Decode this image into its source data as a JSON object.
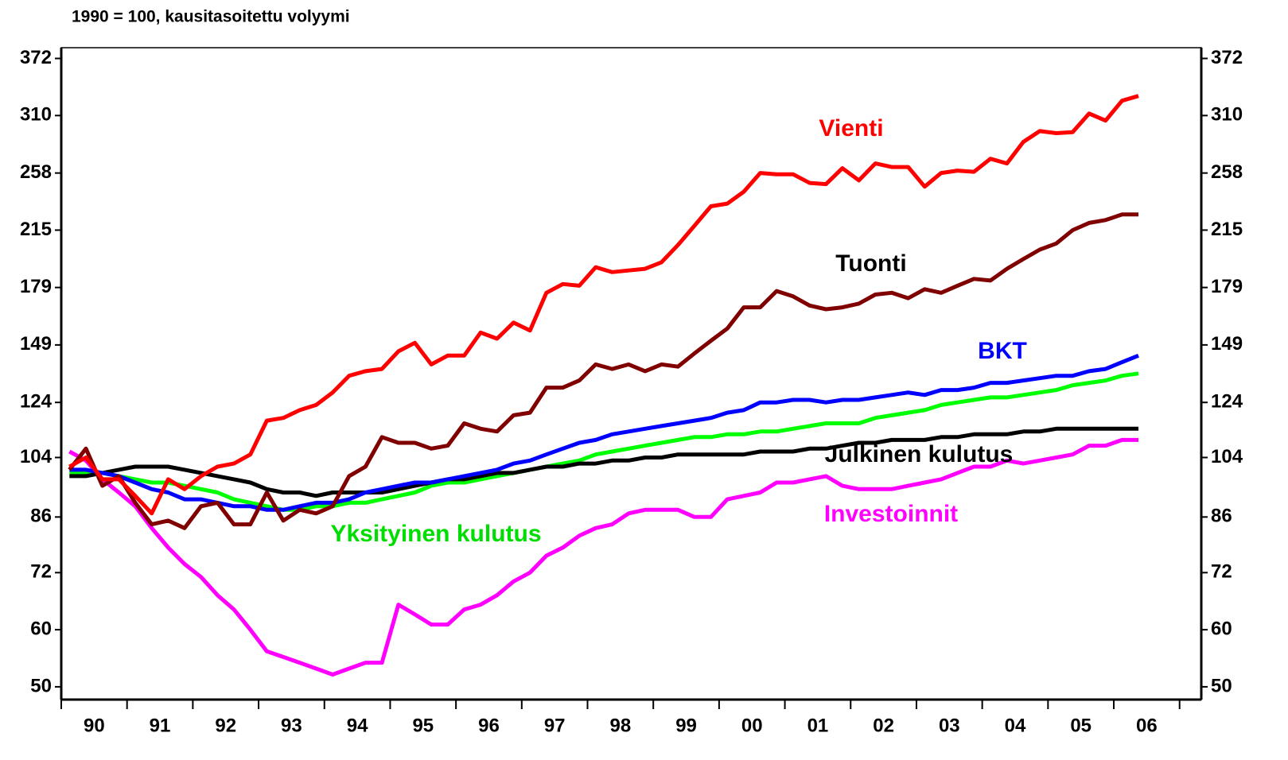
{
  "chart_data": {
    "type": "line",
    "subtitle": "1990 = 100, kausitasoitettu volyymi",
    "log_y": true,
    "x": [
      1990.125,
      1990.375,
      1990.625,
      1990.875,
      1991.125,
      1991.375,
      1991.625,
      1991.875,
      1992.125,
      1992.375,
      1992.625,
      1992.875,
      1993.125,
      1993.375,
      1993.625,
      1993.875,
      1994.125,
      1994.375,
      1994.625,
      1994.875,
      1995.125,
      1995.375,
      1995.625,
      1995.875,
      1996.125,
      1996.375,
      1996.625,
      1996.875,
      1997.125,
      1997.375,
      1997.625,
      1997.875,
      1998.125,
      1998.375,
      1998.625,
      1998.875,
      1999.125,
      1999.375,
      1999.625,
      1999.875,
      2000.125,
      2000.375,
      2000.625,
      2000.875,
      2001.125,
      2001.375,
      2001.625,
      2001.875,
      2002.125,
      2002.375,
      2002.625,
      2002.875,
      2003.125,
      2003.375,
      2003.625,
      2003.875,
      2004.125,
      2004.375,
      2004.625,
      2004.875,
      2005.125,
      2005.375,
      2005.625,
      2005.875,
      2006.125,
      2006.375
    ],
    "xlim": [
      1990,
      2007.33
    ],
    "xticks": [
      1990,
      1991,
      1992,
      1993,
      1994,
      1995,
      1996,
      1997,
      1998,
      1999,
      2000,
      2001,
      2002,
      2003,
      2004,
      2005,
      2006,
      2007
    ],
    "year_labels": [
      "90",
      "91",
      "92",
      "93",
      "94",
      "95",
      "96",
      "97",
      "98",
      "99",
      "00",
      "01",
      "02",
      "03",
      "04",
      "05",
      "06"
    ],
    "ylim": [
      48,
      385
    ],
    "yticks": [
      50,
      60,
      72,
      86,
      104,
      124,
      149,
      179,
      215,
      258,
      310,
      372
    ],
    "series": [
      {
        "name": "Vienti",
        "color": "#ff0000",
        "values": [
          101,
          104,
          97,
          97,
          92,
          87,
          97,
          94,
          98,
          101,
          102,
          105,
          117,
          118,
          121,
          123,
          128,
          135,
          137,
          138,
          146,
          150,
          140,
          144,
          144,
          155,
          152,
          160,
          156,
          176,
          181,
          180,
          191,
          188,
          189,
          190,
          194,
          205,
          218,
          232,
          234,
          243,
          258,
          257,
          257,
          250,
          249,
          262,
          252,
          266,
          263,
          263,
          247,
          258,
          260,
          259,
          270,
          266,
          285,
          295,
          293,
          294,
          312,
          305,
          325,
          330
        ]
      },
      {
        "name": "Tuonti",
        "color": "#800000",
        "values": [
          100,
          107,
          95,
          98,
          90,
          84,
          85,
          83,
          89,
          90,
          84,
          84,
          93,
          85,
          88,
          87,
          89,
          98,
          101,
          111,
          109,
          109,
          107,
          108,
          116,
          114,
          113,
          119,
          120,
          130,
          130,
          133,
          140,
          138,
          140,
          137,
          140,
          139,
          145,
          151,
          157,
          168,
          168,
          177,
          174,
          169,
          167,
          168,
          170,
          175,
          176,
          173,
          178,
          176,
          180,
          184,
          183,
          190,
          196,
          202,
          206,
          215,
          220,
          222,
          226,
          226
        ]
      },
      {
        "name": "BKT",
        "color": "#0000ff",
        "values": [
          100,
          100,
          99,
          98,
          96,
          94,
          93,
          91,
          91,
          90,
          89,
          89,
          88,
          88,
          89,
          90,
          90,
          91,
          93,
          94,
          95,
          96,
          96,
          97,
          98,
          99,
          100,
          102,
          103,
          105,
          107,
          109,
          110,
          112,
          113,
          114,
          115,
          116,
          117,
          118,
          120,
          121,
          124,
          124,
          125,
          125,
          124,
          125,
          125,
          126,
          127,
          128,
          127,
          129,
          129,
          130,
          132,
          132,
          133,
          134,
          135,
          135,
          137,
          138,
          141,
          144
        ]
      },
      {
        "name": "Yksityinen kulutus",
        "color": "#00ff00",
        "values": [
          99,
          99,
          99,
          98,
          97,
          96,
          96,
          95,
          94,
          93,
          91,
          90,
          89,
          88,
          88,
          89,
          89,
          90,
          90,
          91,
          92,
          93,
          95,
          96,
          96,
          97,
          98,
          99,
          100,
          101,
          102,
          103,
          105,
          106,
          107,
          108,
          109,
          110,
          111,
          111,
          112,
          112,
          113,
          113,
          114,
          115,
          116,
          116,
          116,
          118,
          119,
          120,
          121,
          123,
          124,
          125,
          126,
          126,
          127,
          128,
          129,
          131,
          132,
          133,
          135,
          136
        ]
      },
      {
        "name": "Julkinen kulutus",
        "color": "#000000",
        "values": [
          98,
          98,
          99,
          100,
          101,
          101,
          101,
          100,
          99,
          98,
          97,
          96,
          94,
          93,
          93,
          92,
          93,
          93,
          93,
          93,
          94,
          95,
          96,
          97,
          97,
          98,
          99,
          99,
          100,
          101,
          101,
          102,
          102,
          103,
          103,
          104,
          104,
          105,
          105,
          105,
          105,
          105,
          106,
          106,
          106,
          107,
          107,
          108,
          109,
          109,
          110,
          110,
          110,
          111,
          111,
          112,
          112,
          112,
          113,
          113,
          114,
          114,
          114,
          114,
          114,
          114
        ]
      },
      {
        "name": "Investoinnit",
        "color": "#ff00ff",
        "values": [
          106,
          103,
          97,
          93,
          89,
          83,
          78,
          74,
          71,
          67,
          64,
          60,
          56,
          55,
          54,
          53,
          52,
          53,
          54,
          54,
          65,
          63,
          61,
          61,
          64,
          65,
          67,
          70,
          72,
          76,
          78,
          81,
          83,
          84,
          87,
          88,
          88,
          88,
          86,
          86,
          91,
          92,
          93,
          96,
          96,
          97,
          98,
          95,
          94,
          94,
          94,
          95,
          96,
          97,
          99,
          101,
          101,
          103,
          102,
          103,
          104,
          105,
          108,
          108,
          110,
          110
        ]
      }
    ]
  }
}
